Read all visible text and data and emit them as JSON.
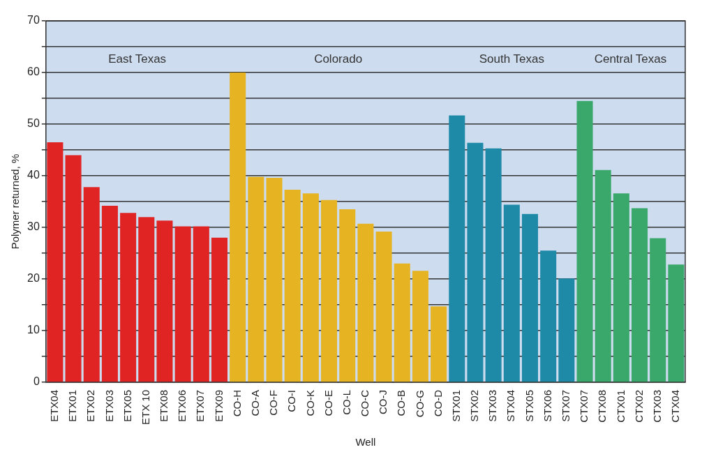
{
  "chart_data": {
    "type": "bar",
    "xlabel": "Well",
    "ylabel": "Polymer returned, %",
    "categories": [
      "ETX04",
      "ETX01",
      "ETX02",
      "ETX03",
      "ETX05",
      "ETX 10",
      "ETX08",
      "ETX06",
      "ETX07",
      "ETX09",
      "CO-H",
      "CO-A",
      "CO-F",
      "CO-I",
      "CO-K",
      "CO-E",
      "CO-L",
      "CO-C",
      "CO-J",
      "CO-B",
      "CO-G",
      "CO-D",
      "STX01",
      "STX02",
      "STX03",
      "STX04",
      "STX05",
      "STX06",
      "STX07",
      "CTX07",
      "CTX08",
      "CTX01",
      "CTX02",
      "CTX03",
      "CTX04"
    ],
    "values": [
      46.5,
      44,
      37.8,
      34.2,
      32.8,
      32,
      31.3,
      30.2,
      30.2,
      28,
      60,
      39.8,
      39.6,
      37.3,
      36.6,
      35.3,
      33.5,
      30.7,
      29.2,
      23,
      21.6,
      14.7,
      51.7,
      46.4,
      45.3,
      34.4,
      32.6,
      25.5,
      20.1,
      54.5,
      41.1,
      36.6,
      33.7,
      27.9,
      22.8
    ],
    "colors": [
      "#e02424",
      "#e02424",
      "#e02424",
      "#e02424",
      "#e02424",
      "#e02424",
      "#e02424",
      "#e02424",
      "#e02424",
      "#e02424",
      "#e6b422",
      "#e6b422",
      "#e6b422",
      "#e6b422",
      "#e6b422",
      "#e6b422",
      "#e6b422",
      "#e6b422",
      "#e6b422",
      "#e6b422",
      "#e6b422",
      "#e6b422",
      "#1e8aa8",
      "#1e8aa8",
      "#1e8aa8",
      "#1e8aa8",
      "#1e8aa8",
      "#1e8aa8",
      "#1e8aa8",
      "#3aa86a",
      "#3aa86a",
      "#3aa86a",
      "#3aa86a",
      "#3aa86a",
      "#3aa86a"
    ],
    "ylim": [
      0,
      70
    ],
    "yticks": [
      0,
      {
        "value": 5,
        "label": null
      },
      10,
      {
        "value": 15,
        "label": null
      },
      20,
      {
        "value": 25,
        "label": null
      },
      30,
      {
        "value": 35,
        "label": null
      },
      40,
      {
        "value": 45,
        "label": null
      },
      50,
      {
        "value": 55,
        "label": null
      },
      60,
      {
        "value": 65,
        "label": null
      },
      70
    ],
    "grid": "y",
    "annotations": [
      "East Texas",
      "Colorado",
      "South Texas",
      "Central Texas"
    ]
  }
}
